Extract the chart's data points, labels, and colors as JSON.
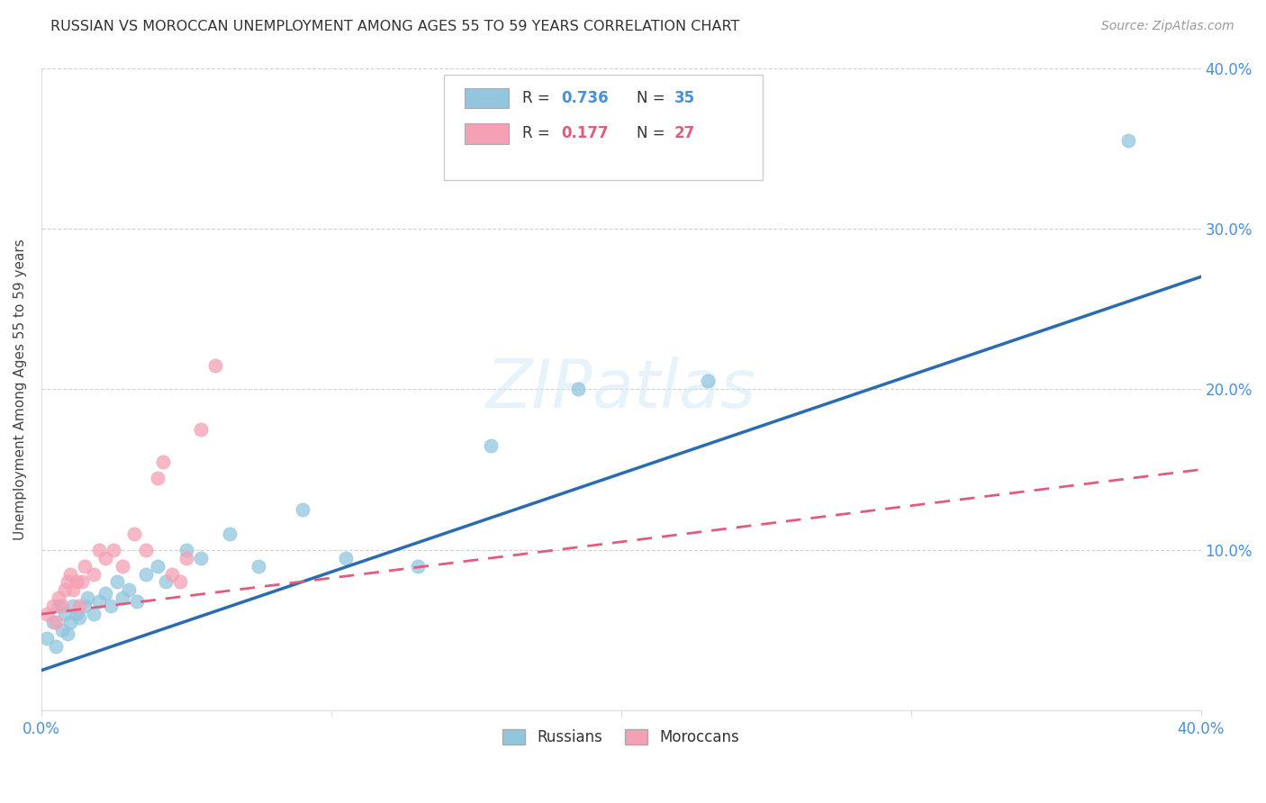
{
  "title": "RUSSIAN VS MOROCCAN UNEMPLOYMENT AMONG AGES 55 TO 59 YEARS CORRELATION CHART",
  "source": "Source: ZipAtlas.com",
  "ylabel": "Unemployment Among Ages 55 to 59 years",
  "watermark": "ZIPatlas",
  "xlim": [
    0.0,
    0.4
  ],
  "ylim": [
    0.0,
    0.4
  ],
  "xticks": [
    0.0,
    0.1,
    0.2,
    0.3,
    0.4
  ],
  "yticks": [
    0.0,
    0.1,
    0.2,
    0.3,
    0.4
  ],
  "xtick_labels": [
    "0.0%",
    "",
    "",
    "",
    "40.0%"
  ],
  "ytick_labels_right": [
    "",
    "10.0%",
    "20.0%",
    "30.0%",
    "40.0%"
  ],
  "russian_R": "0.736",
  "russian_N": "35",
  "moroccan_R": "0.177",
  "moroccan_N": "27",
  "russian_color": "#92c5de",
  "moroccan_color": "#f4a0b5",
  "russian_line_color": "#2b6cb0",
  "moroccan_line_color": "#e05c7a",
  "legend_russian_label": "Russians",
  "legend_moroccan_label": "Moroccans",
  "russians_x": [
    0.002,
    0.004,
    0.005,
    0.006,
    0.007,
    0.008,
    0.009,
    0.01,
    0.011,
    0.012,
    0.013,
    0.015,
    0.016,
    0.018,
    0.02,
    0.022,
    0.024,
    0.026,
    0.028,
    0.03,
    0.033,
    0.036,
    0.04,
    0.043,
    0.05,
    0.055,
    0.065,
    0.075,
    0.09,
    0.105,
    0.13,
    0.155,
    0.185,
    0.23,
    0.375
  ],
  "russians_y": [
    0.045,
    0.055,
    0.04,
    0.065,
    0.05,
    0.06,
    0.048,
    0.055,
    0.065,
    0.06,
    0.058,
    0.065,
    0.07,
    0.06,
    0.068,
    0.073,
    0.065,
    0.08,
    0.07,
    0.075,
    0.068,
    0.085,
    0.09,
    0.08,
    0.1,
    0.095,
    0.11,
    0.09,
    0.125,
    0.095,
    0.09,
    0.165,
    0.2,
    0.205,
    0.355
  ],
  "moroccans_x": [
    0.002,
    0.004,
    0.005,
    0.006,
    0.007,
    0.008,
    0.009,
    0.01,
    0.011,
    0.012,
    0.013,
    0.014,
    0.015,
    0.018,
    0.02,
    0.022,
    0.025,
    0.028,
    0.032,
    0.036,
    0.04,
    0.042,
    0.045,
    0.048,
    0.05,
    0.055,
    0.06
  ],
  "moroccans_y": [
    0.06,
    0.065,
    0.055,
    0.07,
    0.065,
    0.075,
    0.08,
    0.085,
    0.075,
    0.08,
    0.065,
    0.08,
    0.09,
    0.085,
    0.1,
    0.095,
    0.1,
    0.09,
    0.11,
    0.1,
    0.145,
    0.155,
    0.085,
    0.08,
    0.095,
    0.175,
    0.215
  ],
  "russian_trendline_x": [
    0.0,
    0.4
  ],
  "russian_trendline_y": [
    0.025,
    0.27
  ],
  "moroccan_trendline_x": [
    0.0,
    0.4
  ],
  "moroccan_trendline_y": [
    0.06,
    0.15
  ],
  "background_color": "#ffffff",
  "grid_color": "#cccccc",
  "marker_size": 120,
  "tick_color": "#4a90d9"
}
